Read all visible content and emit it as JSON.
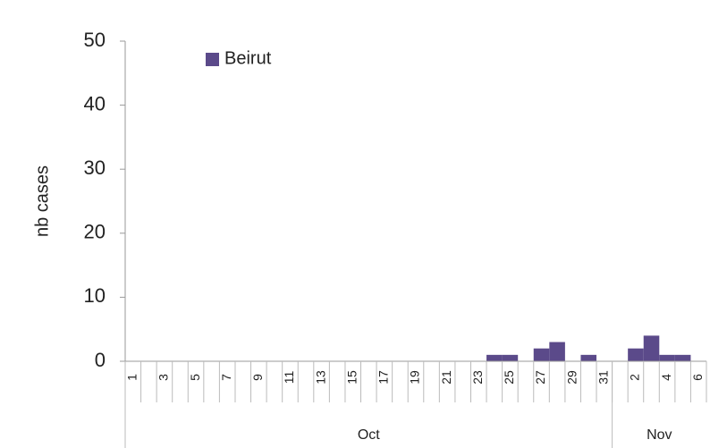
{
  "chart_data": {
    "type": "bar",
    "y_label": "nb cases",
    "categories": [
      "1",
      null,
      "3",
      null,
      "5",
      null,
      "7",
      null,
      "9",
      null,
      "11",
      null,
      "13",
      null,
      "15",
      null,
      "17",
      null,
      "19",
      null,
      "21",
      null,
      "23",
      null,
      "25",
      null,
      "27",
      null,
      "29",
      null,
      "31",
      null,
      "2",
      null,
      "4",
      null,
      "6"
    ],
    "groups": [
      {
        "name": "Oct",
        "span": 31
      },
      {
        "name": "Nov",
        "span": 6
      }
    ],
    "series": [
      {
        "name": "Beirut",
        "color": "#5b4a8a",
        "values": [
          0,
          0,
          0,
          0,
          0,
          0,
          0,
          0,
          0,
          0,
          0,
          0,
          0,
          0,
          0,
          0,
          0,
          0,
          0,
          0,
          0,
          0,
          0,
          1,
          1,
          0,
          2,
          3,
          0,
          1,
          0,
          0,
          2,
          4,
          1,
          1,
          0
        ]
      }
    ],
    "ylim": [
      0,
      50
    ],
    "yticks": [
      0,
      10,
      20,
      30,
      40,
      50
    ],
    "legend": "top-left"
  }
}
